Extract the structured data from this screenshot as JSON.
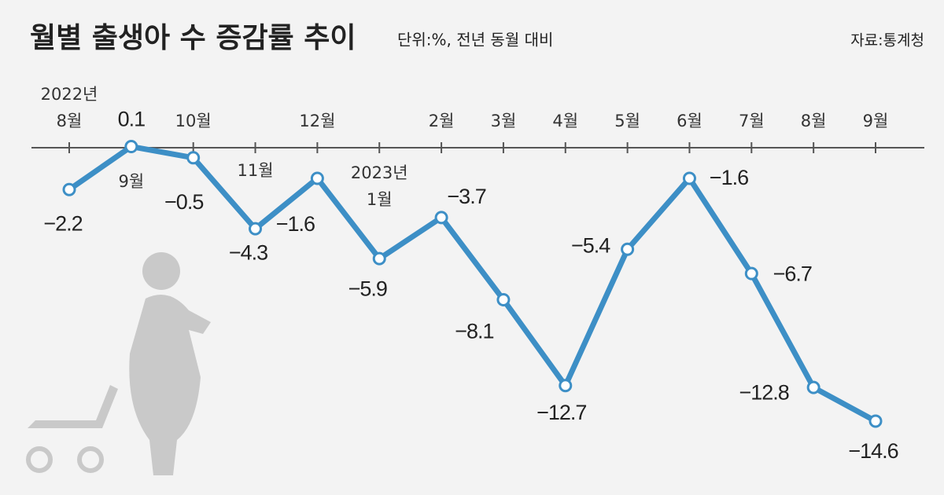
{
  "chart_data": {
    "type": "line",
    "title": "월별 출생아 수 증감률 추이",
    "subtitle": "단위:%, 전년 동월 대비",
    "source": "자료:통계청",
    "categories": [
      "8월",
      "9월",
      "10월",
      "11월",
      "12월",
      "1월",
      "2월",
      "3월",
      "4월",
      "5월",
      "6월",
      "7월",
      "8월",
      "9월"
    ],
    "year_labels": [
      "2022년",
      null,
      null,
      null,
      null,
      "2023년",
      null,
      null,
      null,
      null,
      null,
      null,
      null,
      null
    ],
    "values": [
      -2.2,
      0.1,
      -0.5,
      -4.3,
      -1.6,
      -5.9,
      -3.7,
      -8.1,
      -12.7,
      -5.4,
      -1.6,
      -6.7,
      -12.8,
      -14.6
    ],
    "value_labels": [
      "−2.2",
      "0.1",
      "−0.5",
      "−4.3",
      "−1.6",
      "−5.9",
      "−3.7",
      "−8.1",
      "−12.7",
      "−5.4",
      "−1.6",
      "−6.7",
      "−12.8",
      "−14.6"
    ],
    "color": "#3d8fc6",
    "ylim": [
      -17.8,
      2.9
    ]
  }
}
